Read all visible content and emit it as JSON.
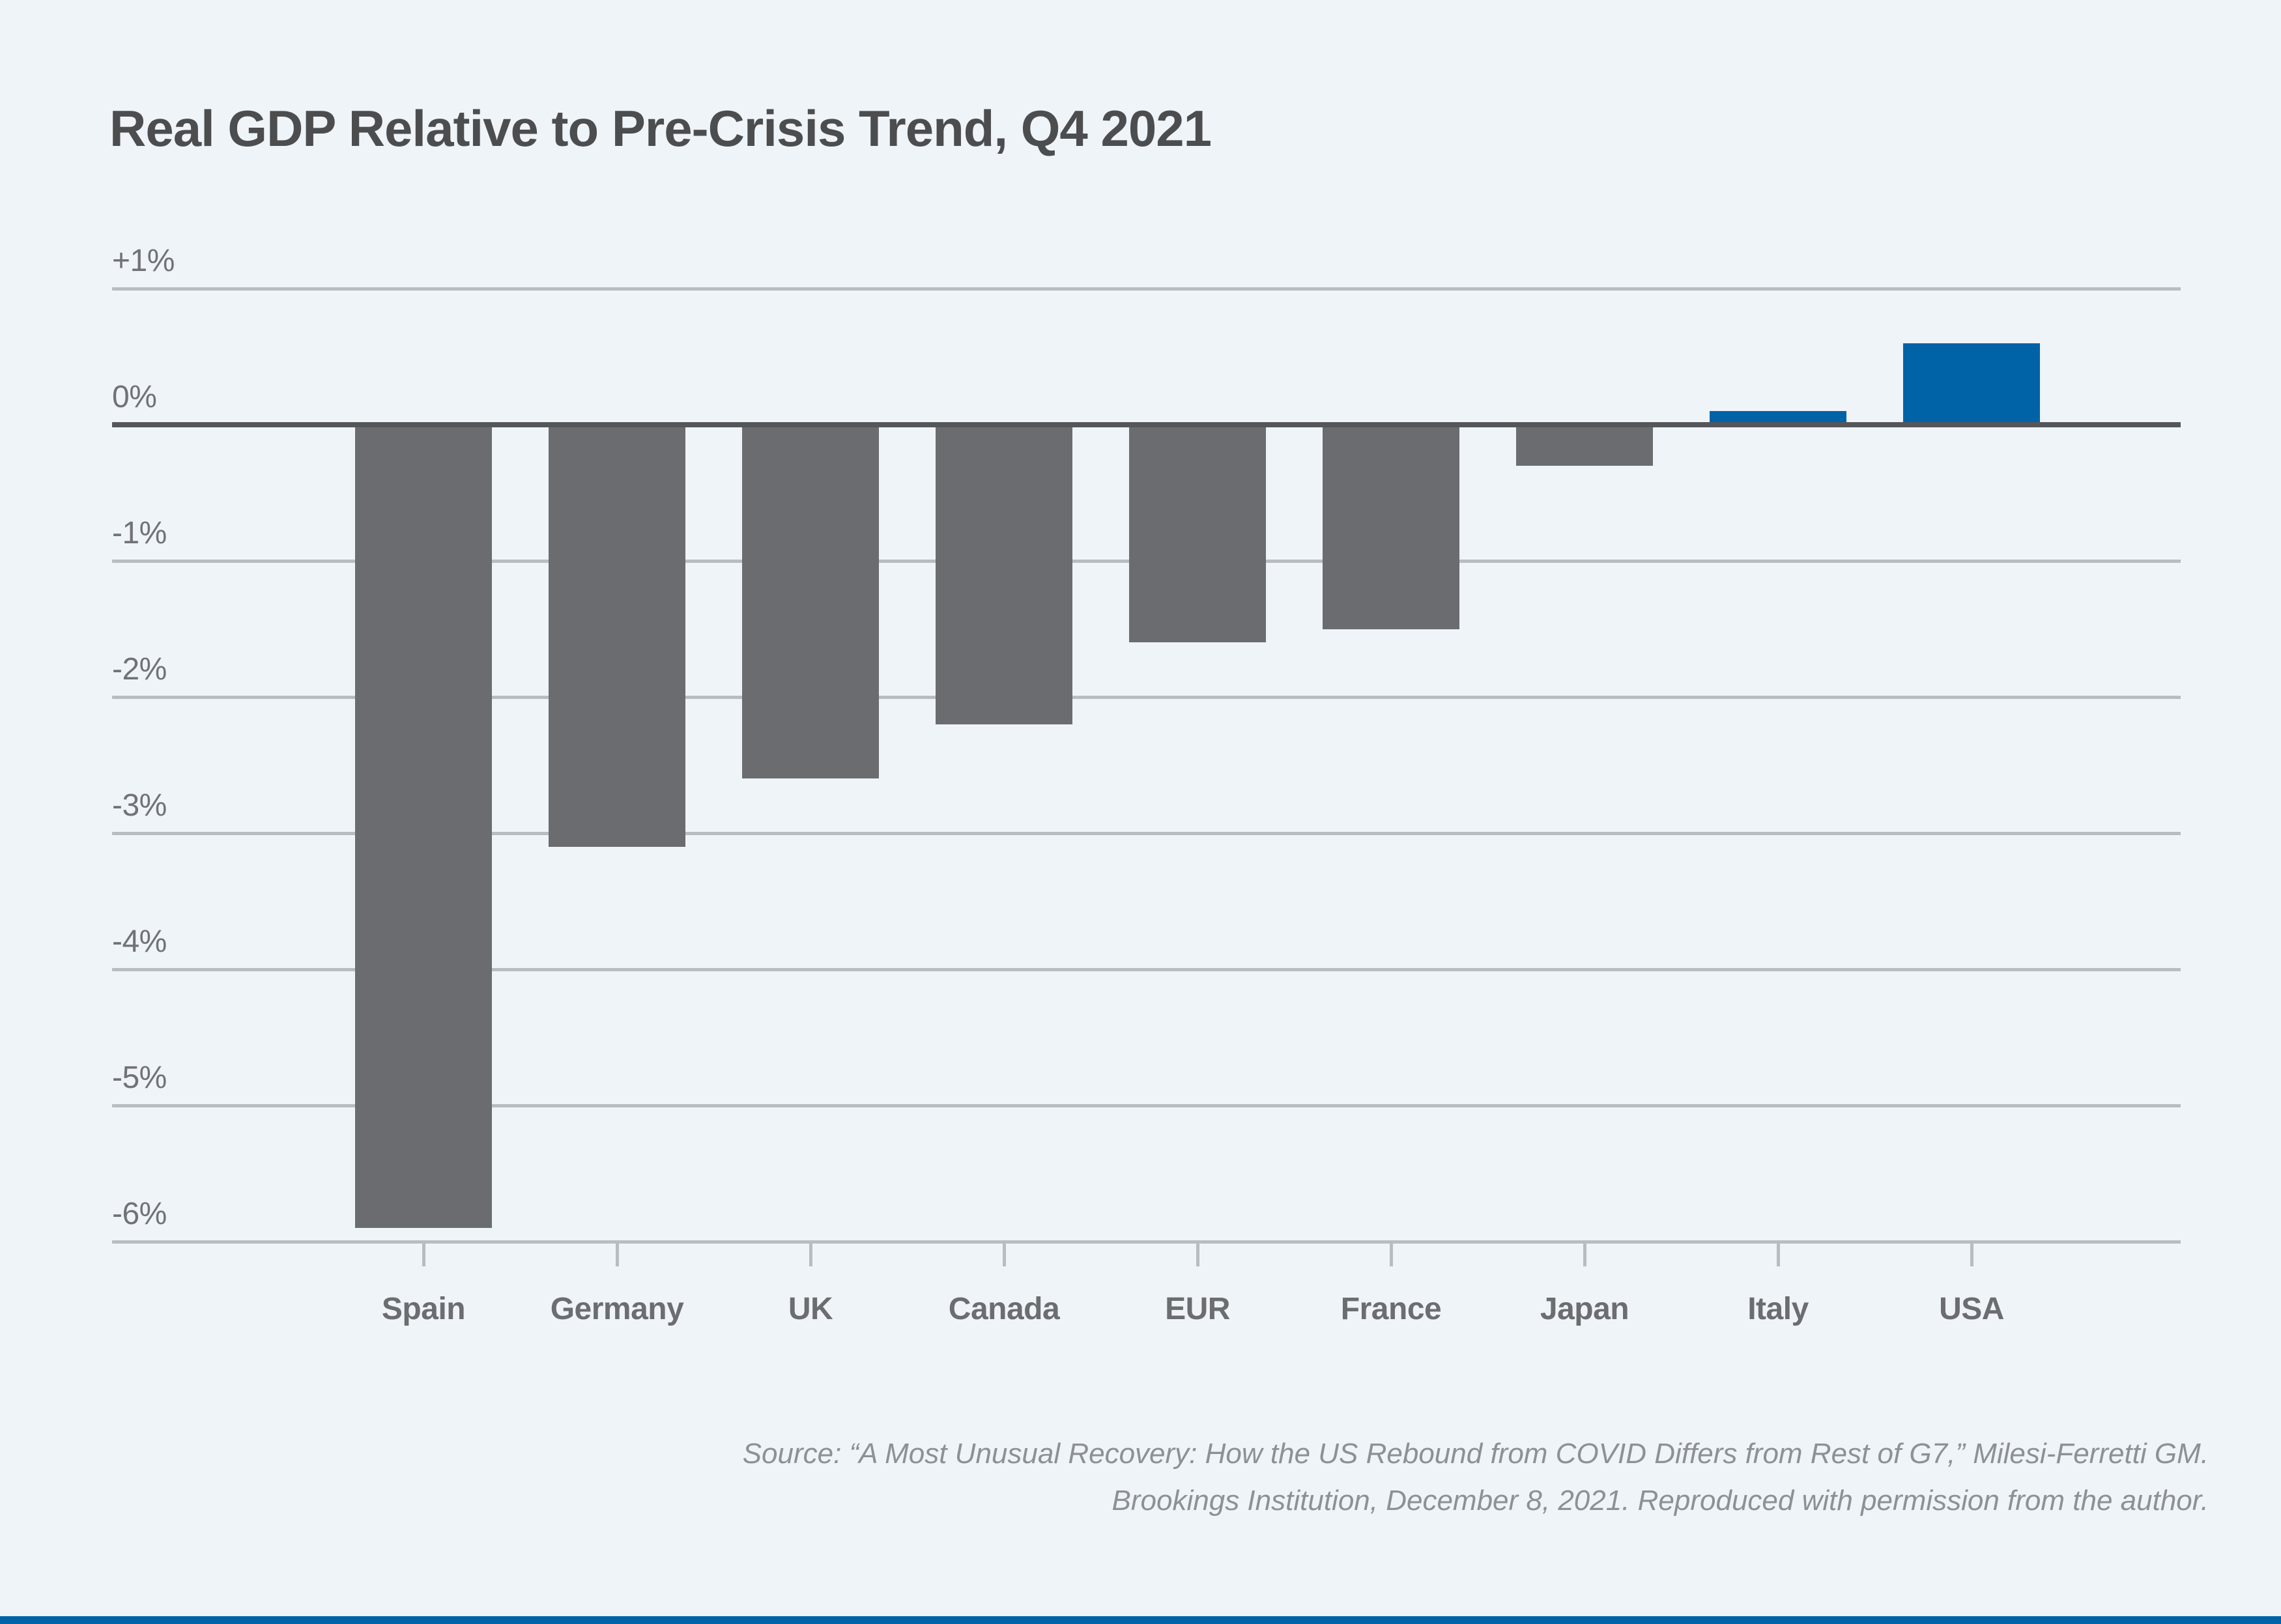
{
  "title": "Real GDP Relative to Pre-Crisis Trend, Q4 2021",
  "source": {
    "line1": "Source: “A Most Unusual Recovery: How the US Rebound from COVID Differs from Rest of G7,” Milesi-Ferretti GM.",
    "line2": "Brookings Institution, December 8, 2021. Reproduced with permission from the author."
  },
  "colors": {
    "background": "#eff4f8",
    "bar_negative_gray": "#6b6c70",
    "bar_positive_blue": "#0063a7",
    "zero_axis": "#55565a",
    "gridline": "#b9bcc0",
    "title_text": "#4c4d4f",
    "y_label_text": "#717276",
    "category_label_text": "#6b6d70",
    "source_text": "#8d9094",
    "footer_stripe": "#0063a7"
  },
  "chart_data": {
    "type": "bar",
    "title": "Real GDP Relative to Pre-Crisis Trend, Q4 2021",
    "xlabel": "",
    "ylabel": "",
    "unit": "percent deviation from pre-crisis trend",
    "categories": [
      "Spain",
      "Germany",
      "UK",
      "Canada",
      "EUR",
      "France",
      "Japan",
      "Italy",
      "USA"
    ],
    "values": [
      -5.9,
      -3.1,
      -2.6,
      -2.2,
      -1.6,
      -1.5,
      -0.3,
      0.1,
      0.6
    ],
    "bar_color_rule": "negative values gray, positive values blue",
    "y_axis": {
      "tick_values": [
        1,
        0,
        -1,
        -2,
        -3,
        -4,
        -5,
        -6
      ],
      "tick_labels": [
        "+1%",
        "0%",
        "-1%",
        "-2%",
        "-3%",
        "-4%",
        "-5%",
        "-6%"
      ],
      "ylim": [
        -6.15,
        1.4
      ]
    },
    "grid": "horizontal gridlines on, zero line emphasized dark",
    "legend": "none"
  }
}
